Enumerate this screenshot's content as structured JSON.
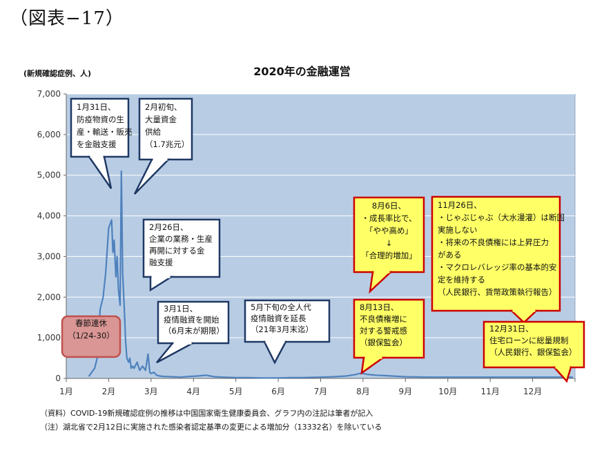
{
  "figure_label": "（図表−17）",
  "chart_data": {
    "type": "line",
    "title": "2020年の金融運営",
    "ylabel": "(新規確認症例、人)",
    "xlabel": "",
    "ylim": [
      0,
      7000
    ],
    "yticks": [
      "0",
      "1,000",
      "2,000",
      "3,000",
      "4,000",
      "5,000",
      "6,000",
      "7,000"
    ],
    "categories": [
      "1月",
      "2月",
      "3月",
      "4月",
      "5月",
      "6月",
      "7月",
      "8月",
      "9月",
      "10月",
      "11月",
      "12月"
    ],
    "grid": true,
    "colors": {
      "plot_bg": "#b8cde4",
      "line": "#4f81bd",
      "grid": "#ffffff"
    },
    "series": [
      {
        "x": [
          1.53,
          1.6,
          1.67,
          1.73,
          1.8,
          1.87,
          1.93,
          2.0,
          2.07,
          2.1,
          2.13,
          2.17,
          2.2,
          2.23,
          2.27,
          2.3,
          2.33,
          2.37,
          2.4,
          2.43,
          2.47,
          2.5,
          2.53,
          2.57,
          2.6,
          2.67,
          2.73,
          2.8,
          2.87,
          2.93,
          2.97,
          3.0,
          3.07,
          3.13,
          3.2,
          3.3,
          3.5,
          3.7,
          3.9,
          4.1,
          4.2,
          4.3,
          4.4,
          4.5,
          4.7,
          5.0,
          5.3,
          5.6,
          6.0,
          6.3,
          6.6,
          7.0,
          7.3,
          7.6,
          7.8,
          7.95,
          8.0,
          8.1,
          8.3,
          8.5,
          9.0,
          9.5,
          10.0,
          10.5,
          11.0,
          11.5,
          12.0,
          12.5,
          12.95
        ],
        "y": [
          50,
          150,
          250,
          500,
          1700,
          2000,
          2600,
          3700,
          3900,
          3100,
          3400,
          2500,
          3000,
          2200,
          1800,
          5100,
          2600,
          1700,
          900,
          500,
          400,
          500,
          250,
          300,
          250,
          400,
          200,
          300,
          200,
          600,
          150,
          120,
          150,
          80,
          60,
          50,
          40,
          30,
          50,
          60,
          70,
          80,
          60,
          40,
          30,
          20,
          20,
          10,
          10,
          20,
          20,
          30,
          40,
          60,
          90,
          130,
          120,
          100,
          80,
          70,
          40,
          30,
          30,
          30,
          30,
          30,
          30,
          30,
          30
        ]
      }
    ],
    "annotations": [
      {
        "kind": "callout",
        "lines": [
          "1月31日、",
          "防疫物資の生",
          "産・輸送・販売",
          "を金融支援"
        ],
        "border": "#1f3864",
        "fill": "#ffffff"
      },
      {
        "kind": "callout",
        "lines": [
          "2月初旬、",
          "大量資金",
          "供給",
          "（1.7兆元）"
        ],
        "border": "#1f3864",
        "fill": "#ffffff"
      },
      {
        "kind": "callout",
        "lines": [
          "2月26日、",
          "企業の業務・生産",
          "再開に対する金",
          "融支援"
        ],
        "border": "#1f3864",
        "fill": "#ffffff"
      },
      {
        "kind": "callout",
        "lines": [
          "3月1日、",
          "疫情融資を開始",
          "（6月末が期限）"
        ],
        "border": "#1f3864",
        "fill": "#ffffff"
      },
      {
        "kind": "callout",
        "lines": [
          "5月下旬の全人代",
          "疫情融資を延長",
          "（21年3月末迄）"
        ],
        "border": "#1f3864",
        "fill": "#ffffff"
      },
      {
        "kind": "callout",
        "lines": [
          "8月6日、",
          "・成長率比で、",
          "「やや高め」",
          "↓",
          "「合理的増加」"
        ],
        "border": "#cc0000",
        "fill": "#ffff66"
      },
      {
        "kind": "callout",
        "lines": [
          "8月13日、",
          "不良債権増に",
          "対する警戒感",
          "（銀保監会）"
        ],
        "border": "#cc0000",
        "fill": "#ffff66"
      },
      {
        "kind": "callout",
        "lines": [
          "11月26日、",
          "・じゃぶじゃぶ（大水漫灌）は断固",
          "実施しない",
          "・将来の不良債権には上昇圧力",
          "がある",
          "・マクロレバレッジ率の基本的安",
          "定を維持する",
          "（人民銀行、貨幣政策執行報告）"
        ],
        "border": "#cc0000",
        "fill": "#ffff66"
      },
      {
        "kind": "callout",
        "lines": [
          "12月31日、",
          "住宅ローンに総量規制",
          "（人民銀行、銀保監会）"
        ],
        "border": "#cc0000",
        "fill": "#ffff66"
      },
      {
        "kind": "box",
        "lines": [
          "春節連休",
          "（1/24-30）"
        ],
        "border": "#c0504d",
        "fill": "#d99694"
      }
    ]
  },
  "notes": [
    "（資料）COVID-19新規確認症例の推移は中国国家衛生健康委員会、グラフ内の注記は筆者が記入",
    "（注）湖北省で2月12日に実施された感染者認定基準の変更による増加分（13332名）を除いている"
  ]
}
